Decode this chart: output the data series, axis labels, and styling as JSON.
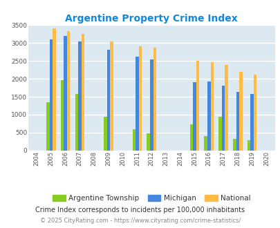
{
  "title": "Argentine Property Crime Index",
  "years": [
    2004,
    2005,
    2006,
    2007,
    2008,
    2009,
    2010,
    2011,
    2012,
    2013,
    2014,
    2015,
    2016,
    2017,
    2018,
    2019,
    2020
  ],
  "argentine": [
    0,
    1350,
    1970,
    1580,
    0,
    940,
    0,
    600,
    470,
    0,
    0,
    730,
    400,
    940,
    330,
    290,
    0
  ],
  "michigan": [
    0,
    3100,
    3200,
    3050,
    0,
    2820,
    0,
    2620,
    2540,
    0,
    0,
    1900,
    1920,
    1800,
    1640,
    1570,
    0
  ],
  "national": [
    0,
    3400,
    3330,
    3260,
    0,
    3040,
    0,
    2900,
    2860,
    0,
    0,
    2500,
    2470,
    2380,
    2200,
    2120,
    0
  ],
  "argentine_color": "#88cc22",
  "michigan_color": "#4488dd",
  "national_color": "#ffbb44",
  "bg_color": "#dce9f0",
  "title_color": "#1188dd",
  "ylim": [
    0,
    3500
  ],
  "yticks": [
    0,
    500,
    1000,
    1500,
    2000,
    2500,
    3000,
    3500
  ],
  "bar_width": 0.22,
  "footnote1": "Crime Index corresponds to incidents per 100,000 inhabitants",
  "footnote2": "© 2025 CityRating.com - https://www.cityrating.com/crime-statistics/",
  "legend_labels": [
    "Argentine Township",
    "Michigan",
    "National"
  ]
}
